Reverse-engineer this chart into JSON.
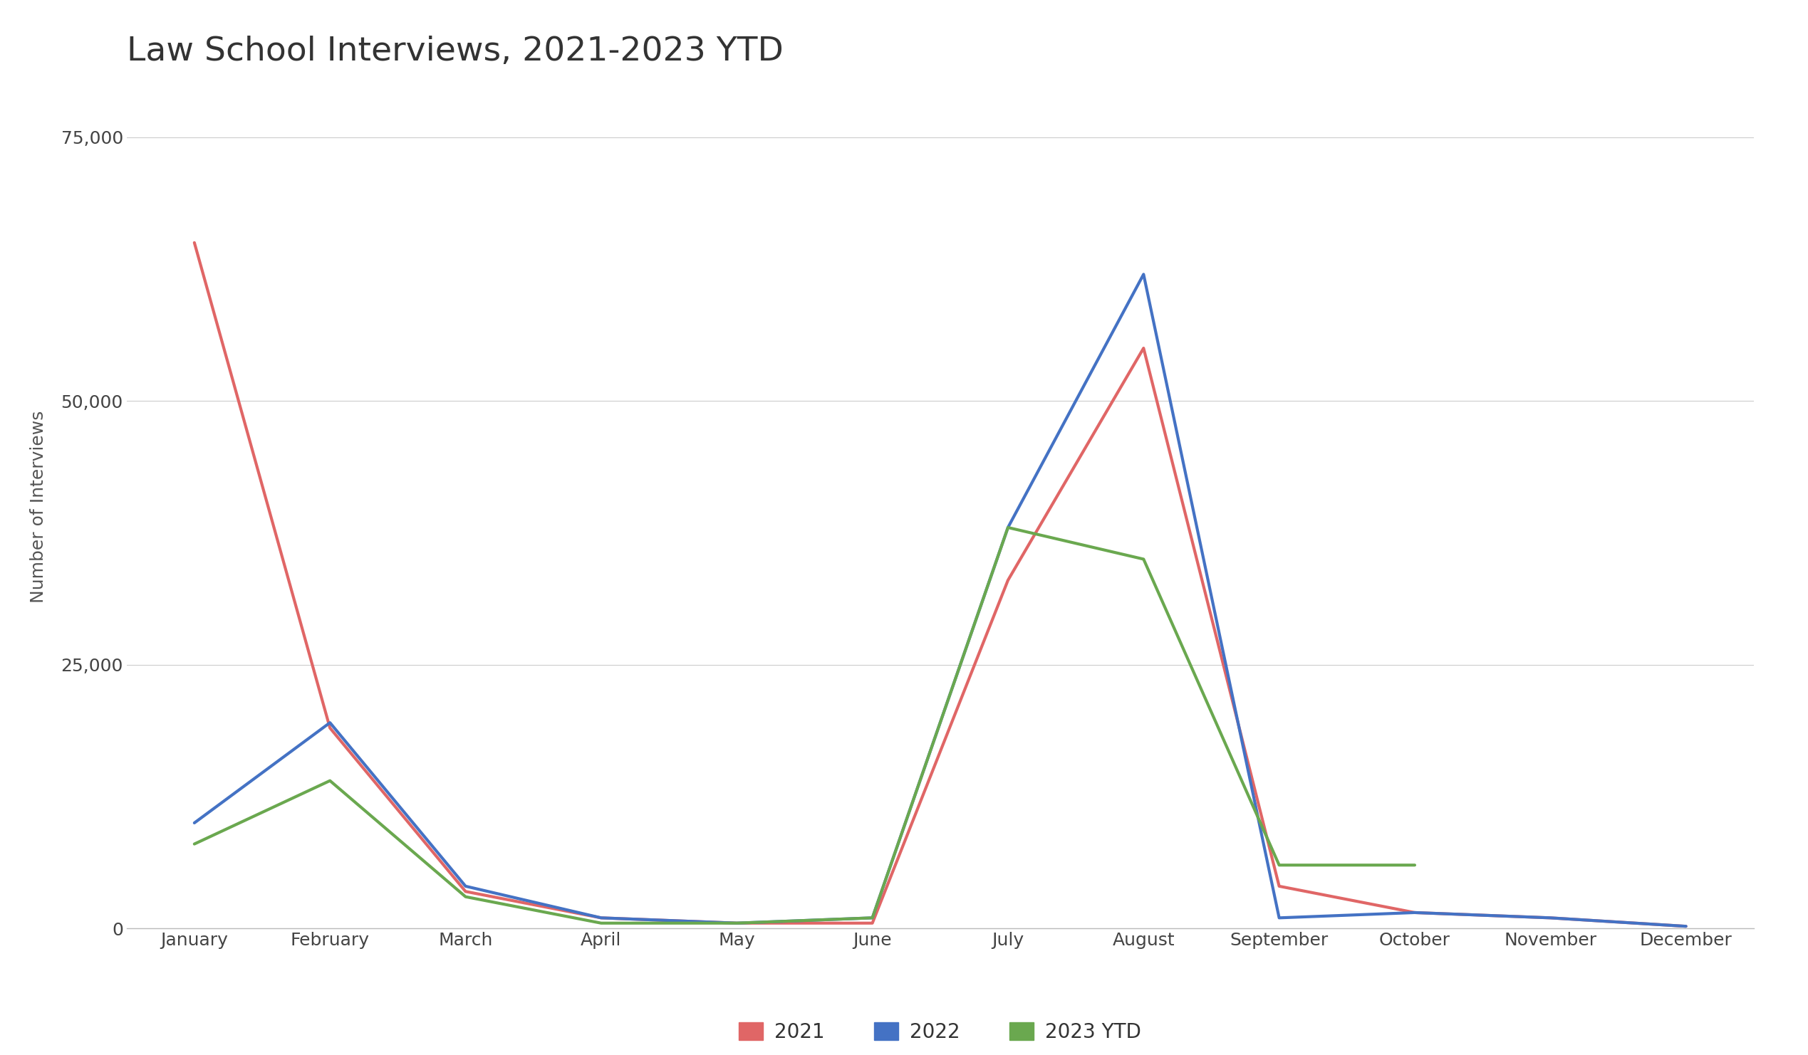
{
  "title": "Law School Interviews, 2021-2023 YTD",
  "ylabel": "Number of Interviews",
  "months": [
    "January",
    "February",
    "March",
    "April",
    "May",
    "June",
    "July",
    "August",
    "September",
    "October",
    "November",
    "December"
  ],
  "series": {
    "2021": {
      "color": "#e06666",
      "values": [
        65000,
        19000,
        3500,
        1000,
        500,
        500,
        33000,
        55000,
        4000,
        1500,
        1000,
        200
      ]
    },
    "2022": {
      "color": "#4472c4",
      "values": [
        10000,
        19500,
        4000,
        1000,
        500,
        1000,
        38000,
        62000,
        1000,
        1500,
        1000,
        200
      ]
    },
    "2023 YTD": {
      "color": "#6aa84f",
      "values": [
        8000,
        14000,
        3000,
        500,
        500,
        1000,
        38000,
        35000,
        6000,
        6000,
        null,
        null
      ]
    }
  },
  "ylim": [
    0,
    80000
  ],
  "yticks": [
    0,
    25000,
    50000,
    75000
  ],
  "background_color": "#ffffff",
  "grid_color": "#cccccc",
  "title_fontsize": 34,
  "axis_label_fontsize": 18,
  "tick_fontsize": 18,
  "legend_fontsize": 20,
  "line_width": 3.0
}
